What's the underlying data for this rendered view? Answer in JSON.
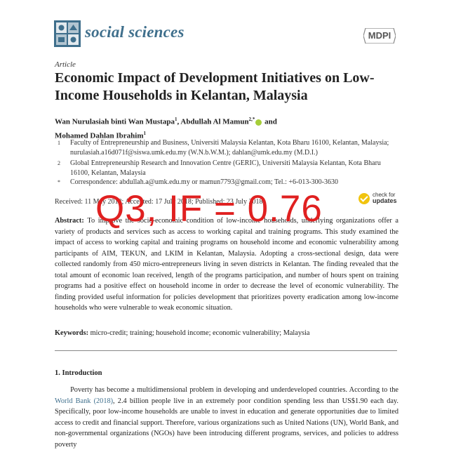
{
  "header": {
    "journal_name": "social sciences",
    "publisher": "MDPI",
    "logo_icon": "journal-emblem-icon"
  },
  "article": {
    "type": "Article",
    "title": "Economic Impact of Development Initiatives on Low-Income Households in Kelantan, Malaysia",
    "authors_line1_a": "Wan Nurulasiah binti Wan Mustapa",
    "authors_line1_a_sup": "1",
    "authors_line1_sep": ", ",
    "authors_line1_b": "Abdullah Al Mamun",
    "authors_line1_b_sup": "2,*",
    "authors_line1_and": " and",
    "authors_line2": "Mohamed Dahlan Ibrahim",
    "authors_line2_sup": "1",
    "affiliations": [
      {
        "num": "1",
        "text": "Faculty of Entrepreneurship and Business, Universiti Malaysia Kelantan, Kota Bharu 16100, Kelantan, Malaysia; nurulasiah.a16d071f@siswa.umk.edu.my (W.N.b.W.M.); dahlan@umk.edu.my (M.D.I.)"
      },
      {
        "num": "2",
        "text": "Global Entrepreneurship Research and Innovation Centre (GERIC), Universiti Malaysia Kelantan, Kota Bharu 16100, Kelantan, Malaysia"
      },
      {
        "num": "*",
        "text": "Correspondence: abdullah.a@umk.edu.my or mamun7793@gmail.com; Tel.: +6-013-300-3630"
      }
    ],
    "dates": "Received: 11 May 2018; Accepted: 17 July 2018; Published: 23 July 2018",
    "check_updates_line1": "check for",
    "check_updates_line2": "updates",
    "abstract_label": "Abstract:",
    "abstract_text": "To improve the socio-economic condition of low-income households, underlying organizations offer a variety of products and services such as access to working capital and training programs. This study examined the impact of access to working capital and training programs on household income and economic vulnerability among participants of AIM, TEKUN, and LKIM in Kelantan, Malaysia. Adopting a cross-sectional design, data were collected randomly from 450 micro-entrepreneurs living in seven districts in Kelantan. The finding revealed that the total amount of economic loan received, length of the programs participation, and number of hours spent on training programs had a positive effect on household income in order to decrease the level of economic vulnerability. The finding provided useful information for policies development that prioritizes poverty eradication among low-income households who were vulnerable to weak economic situation.",
    "keywords_label": "Keywords:",
    "keywords_text": "micro-credit; training; household income; economic vulnerability; Malaysia",
    "section_title": "1. Introduction",
    "intro_part1": "Poverty has become a multidimensional problem in developing and underdeveloped countries. According to the ",
    "intro_link": "World Bank",
    "intro_year": " (2018)",
    "intro_part2": ", 2.4 billion people live in an extremely poor condition spending less than US$1.90 each day. Specifically, poor low-income households are unable to invest in education and generate opportunities due to limited access to credit and financial support. Therefore, various organizations such as United Nations (UN), World Bank, and non-governmental organizations (NGOs) have been introducing different programs, services, and policies to address poverty"
  },
  "overlay": {
    "text": "Q3, IF = 0.76",
    "color": "#e02020"
  }
}
